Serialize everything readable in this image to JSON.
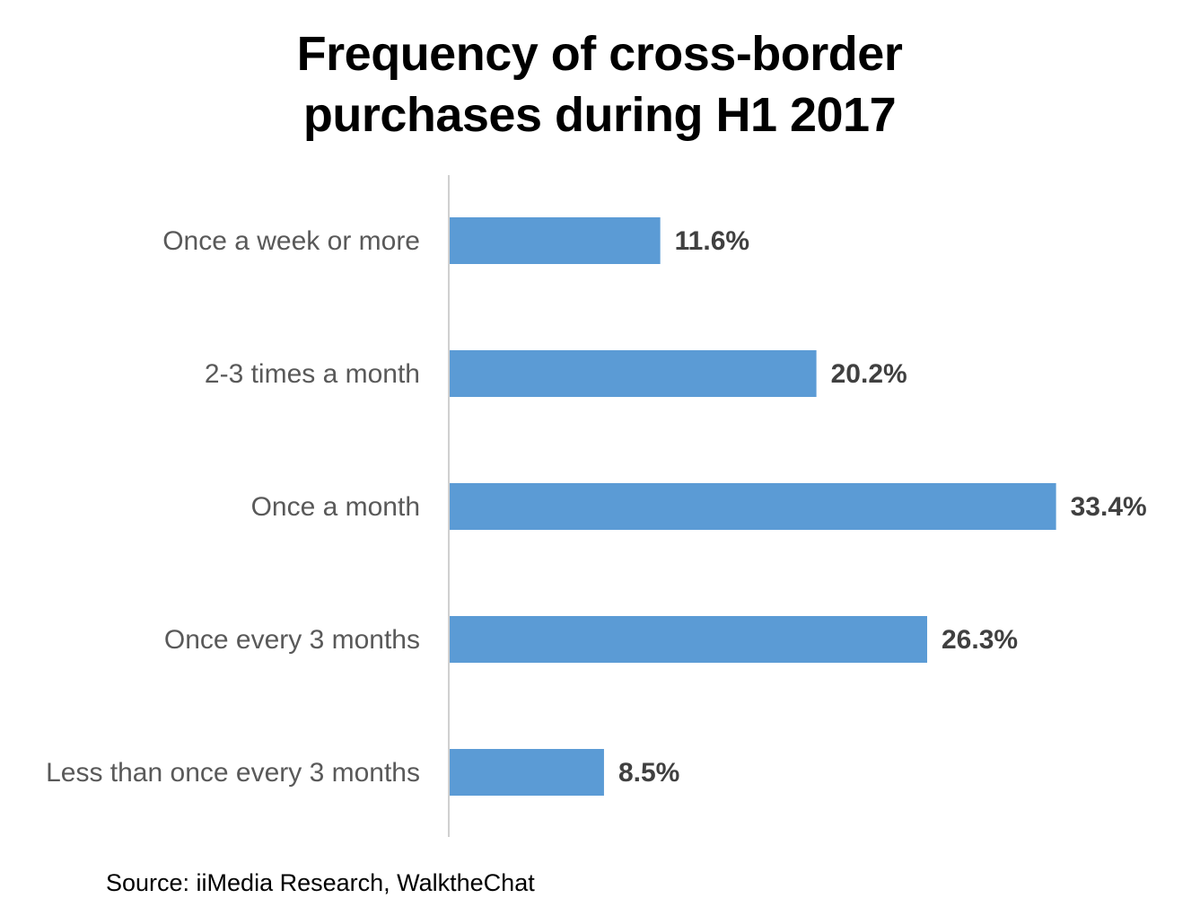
{
  "chart_data": {
    "type": "bar",
    "orientation": "horizontal",
    "title": "Frequency of cross-border purchases during H1 2017",
    "categories": [
      "Once a week or more",
      "2-3 times a month",
      "Once a month",
      "Once every 3 months",
      "Less than once every 3 months"
    ],
    "values": [
      11.6,
      20.2,
      33.4,
      26.3,
      8.5
    ],
    "value_labels": [
      "11.6%",
      "20.2%",
      "33.4%",
      "26.3%",
      "8.5%"
    ],
    "color": "#5b9bd5",
    "xlim": [
      0,
      35
    ],
    "source": "Source: iiMedia Research, WalktheChat"
  }
}
